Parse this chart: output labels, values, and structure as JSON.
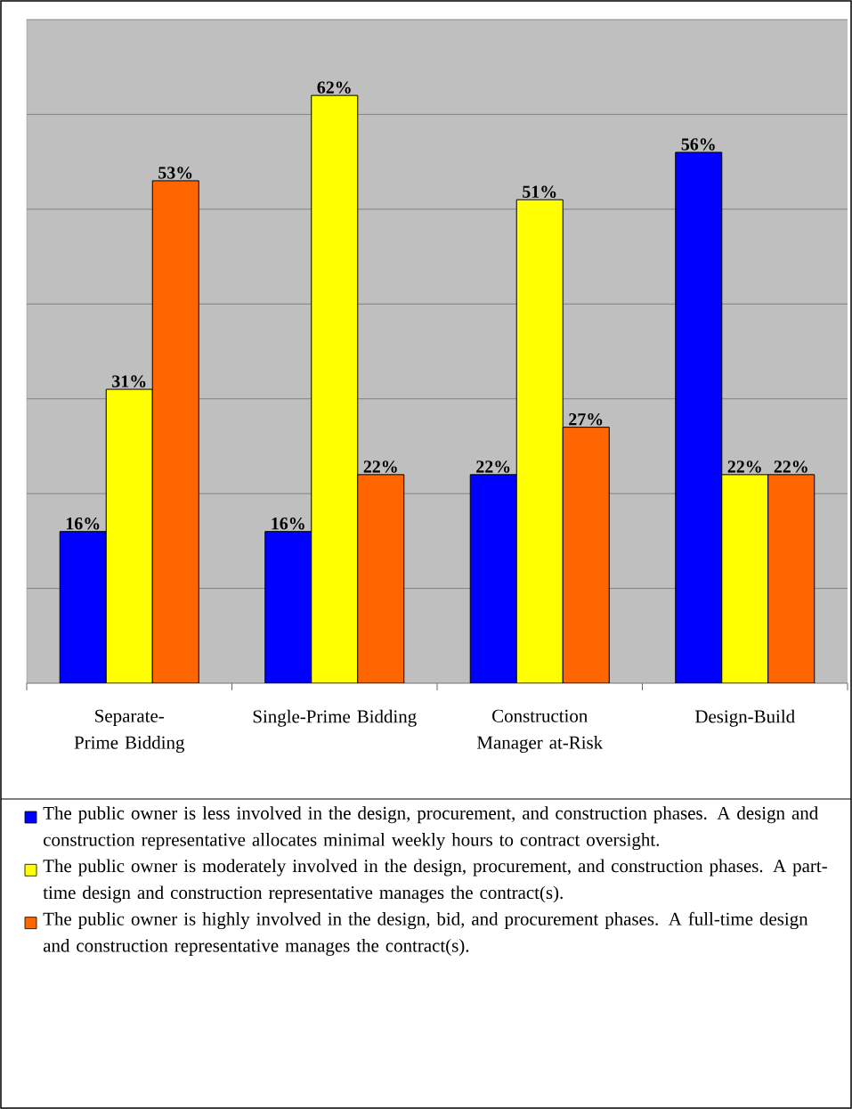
{
  "chart_data": {
    "type": "bar",
    "categories": [
      "Separate-Prime Bidding",
      "Single-Prime Bidding",
      "Construction Manager at-Risk",
      "Design-Build"
    ],
    "series": [
      {
        "name": "The public owner is less involved in the design, procurement, and construction phases.  A design and construction representative allocates minimal weekly hours to contract oversight.",
        "color": "#0000ff",
        "values": [
          16,
          16,
          22,
          56
        ],
        "value_labels": [
          "16%",
          "16%",
          "22%",
          "56%"
        ]
      },
      {
        "name": "The public owner is moderately involved in the design, procurement, and construction phases.  A part-time design and construction representative manages the contract(s).",
        "color": "#ffff00",
        "values": [
          31,
          62,
          51,
          22
        ],
        "value_labels": [
          "31%",
          "62%",
          "51%",
          "22%"
        ]
      },
      {
        "name": "The public owner is highly involved in the design, bid, and procurement phases.  A full-time design and construction representative manages the contract(s).",
        "color": "#ff6600",
        "values": [
          53,
          22,
          27,
          22
        ],
        "value_labels": [
          "53%",
          "22%",
          "27%",
          "22%"
        ]
      }
    ],
    "ylim": [
      0,
      70
    ],
    "yticks": [
      {
        "value": 0,
        "label": null
      },
      {
        "value": 10,
        "label": null
      },
      {
        "value": 20,
        "label": null
      },
      {
        "value": 30,
        "label": null
      },
      {
        "value": 40,
        "label": null
      },
      {
        "value": 50,
        "label": null
      },
      {
        "value": 60,
        "label": null
      },
      {
        "value": 70,
        "label": null
      }
    ],
    "grid": "y",
    "legend": "bottom",
    "tick_labels": "x"
  }
}
